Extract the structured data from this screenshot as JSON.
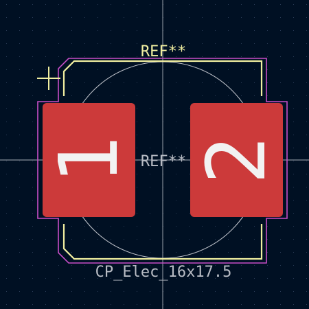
{
  "editor": {
    "background": "#001023",
    "grid_color": "#2a3b56",
    "crosshair_color": "#c8ccd2"
  },
  "footprint": {
    "reference_top": "REF**",
    "reference_center": "REF**",
    "value": "CP_Elec_16x17.5",
    "pads": [
      {
        "number": "1"
      },
      {
        "number": "2"
      }
    ],
    "colors": {
      "pad": "#cc3a3a",
      "pad_text": "#f2f2f2",
      "silkscreen": "#f0eea0",
      "courtyard": "#c84ec8",
      "fab": "#b8bcc4",
      "reference_top": "#f0eea0",
      "reference_center": "#b8bcc4",
      "value": "#b8bcc4"
    }
  }
}
